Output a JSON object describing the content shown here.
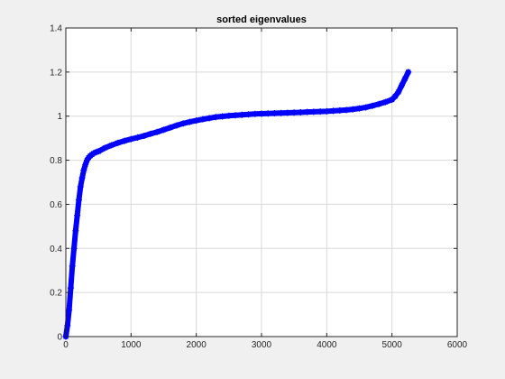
{
  "chart_data": {
    "type": "scatter",
    "title": "sorted eigenvalues",
    "xlabel": "",
    "ylabel": "",
    "xlim": [
      0,
      6000
    ],
    "ylim": [
      0,
      1.4
    ],
    "xticks": [
      0,
      1000,
      2000,
      3000,
      4000,
      5000,
      6000
    ],
    "yticks": [
      0,
      0.2,
      0.4,
      0.6,
      0.8,
      1,
      1.2,
      1.4
    ],
    "xtick_labels": [
      "0",
      "1000",
      "2000",
      "3000",
      "4000",
      "5000",
      "6000"
    ],
    "ytick_labels": [
      "0",
      "0.2",
      "0.4",
      "0.6",
      "0.8",
      "1",
      "1.2",
      "1.4"
    ],
    "grid": true,
    "marker": "*",
    "color": "#0000ff",
    "background": "#ffffff",
    "series": [
      {
        "x": [
          0,
          25,
          50,
          75,
          100,
          125,
          150,
          175,
          200,
          225,
          250,
          275,
          300,
          325,
          350,
          375,
          400,
          425,
          450,
          475,
          500,
          600,
          700,
          800,
          900,
          1000,
          1100,
          1200,
          1300,
          1400,
          1500,
          1600,
          1700,
          1800,
          1900,
          2000,
          2100,
          2200,
          2300,
          2400,
          2500,
          2600,
          2700,
          2800,
          2900,
          3000,
          3100,
          3200,
          3300,
          3400,
          3500,
          3600,
          3700,
          3800,
          3900,
          4000,
          4100,
          4200,
          4300,
          4400,
          4500,
          4600,
          4700,
          4800,
          4900,
          5000,
          5050,
          5100,
          5150,
          5200,
          5250
        ],
        "y": [
          0.0,
          0.05,
          0.12,
          0.22,
          0.32,
          0.4,
          0.48,
          0.55,
          0.62,
          0.68,
          0.72,
          0.755,
          0.78,
          0.8,
          0.812,
          0.82,
          0.826,
          0.831,
          0.835,
          0.838,
          0.84,
          0.856,
          0.868,
          0.879,
          0.888,
          0.896,
          0.903,
          0.911,
          0.92,
          0.928,
          0.938,
          0.948,
          0.958,
          0.967,
          0.974,
          0.98,
          0.986,
          0.991,
          0.996,
          0.999,
          1.002,
          1.004,
          1.006,
          1.008,
          1.01,
          1.011,
          1.012,
          1.013,
          1.014,
          1.015,
          1.016,
          1.017,
          1.019,
          1.02,
          1.021,
          1.022,
          1.024,
          1.026,
          1.028,
          1.031,
          1.035,
          1.04,
          1.047,
          1.055,
          1.064,
          1.075,
          1.09,
          1.11,
          1.14,
          1.17,
          1.2
        ]
      }
    ]
  }
}
